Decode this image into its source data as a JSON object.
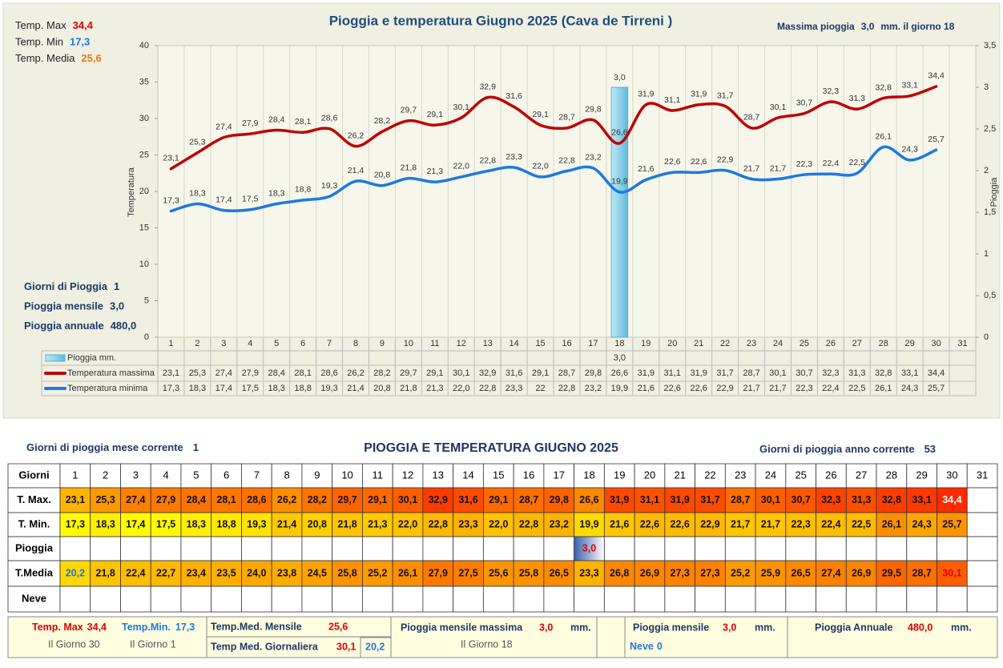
{
  "stats": [
    {
      "label": "Temp. Max",
      "value": "34,4",
      "color": "#e00000"
    },
    {
      "label": "Temp. Min",
      "value": "17,3",
      "color": "#1e78e0"
    },
    {
      "label": "Temp. Media",
      "value": "25,6",
      "color": "#e07a10"
    }
  ],
  "rain_stats": [
    {
      "label": "Giorni di Pioggia",
      "value": "1"
    },
    {
      "label": "Pioggia mensile",
      "value": "3,0"
    },
    {
      "label": "Pioggia annuale",
      "value": "480,0"
    }
  ],
  "max_rain": {
    "label": "Massima pioggia",
    "value": "3,0",
    "unit": "mm. il giorno 18"
  },
  "chart_data": {
    "type": "line",
    "title": "Pioggia e temperatura Giugno 2025 (Cava de Tirreni )",
    "y_label": "Temperatura",
    "y2_label": "Pioggia",
    "categories": [
      "1",
      "2",
      "3",
      "4",
      "5",
      "6",
      "7",
      "8",
      "9",
      "10",
      "11",
      "12",
      "13",
      "14",
      "15",
      "16",
      "17",
      "18",
      "19",
      "20",
      "21",
      "22",
      "23",
      "24",
      "25",
      "26",
      "27",
      "28",
      "29",
      "30",
      "31"
    ],
    "ylim": [
      0,
      40
    ],
    "yticks": [
      0,
      5,
      10,
      15,
      20,
      25,
      30,
      35,
      40
    ],
    "y2lim": [
      0,
      3.5
    ],
    "y2ticks": [
      0,
      {
        "value": 0.5,
        "label": "0,5"
      },
      1,
      {
        "value": 1.5,
        "label": "1,5"
      },
      2,
      {
        "value": 2.5,
        "label": "2,5"
      },
      3,
      {
        "value": 3.5,
        "label": "3,5"
      }
    ],
    "grid": "vertical",
    "series": [
      {
        "name": "Pioggia mm.",
        "type": "bar",
        "axis": "y2",
        "color": "#8fd3ea",
        "values": [
          null,
          null,
          null,
          null,
          null,
          null,
          null,
          null,
          null,
          null,
          null,
          null,
          null,
          null,
          null,
          null,
          null,
          3.0,
          null,
          null,
          null,
          null,
          null,
          null,
          null,
          null,
          null,
          null,
          null,
          null,
          null
        ],
        "value_labels": [
          null,
          null,
          null,
          null,
          null,
          null,
          null,
          null,
          null,
          null,
          null,
          null,
          null,
          null,
          null,
          null,
          null,
          "3,0",
          null,
          null,
          null,
          null,
          null,
          null,
          null,
          null,
          null,
          null,
          null,
          null,
          null
        ]
      },
      {
        "name": "Temperatura massima",
        "type": "line",
        "color": "#c00000",
        "values": [
          23.1,
          25.3,
          27.4,
          27.9,
          28.4,
          28.1,
          28.6,
          26.2,
          28.2,
          29.7,
          29.1,
          30.1,
          32.9,
          31.6,
          29.1,
          28.7,
          29.8,
          26.6,
          31.9,
          31.1,
          31.9,
          31.7,
          28.7,
          30.1,
          30.7,
          32.3,
          31.3,
          32.8,
          33.1,
          34.4,
          null
        ],
        "value_labels": [
          "23,1",
          "25,3",
          "27,4",
          "27,9",
          "28,4",
          "28,1",
          "28,6",
          "26,2",
          "28,2",
          "29,7",
          "29,1",
          "30,1",
          "32,9",
          "31,6",
          "29,1",
          "28,7",
          "29,8",
          "26,6",
          "31,9",
          "31,1",
          "31,9",
          "31,7",
          "28,7",
          "30,1",
          "30,7",
          "32,3",
          "31,3",
          "32,8",
          "33,1",
          "34,4",
          null
        ]
      },
      {
        "name": "Temperatura minima",
        "type": "line",
        "color": "#1e78e0",
        "values": [
          17.3,
          18.3,
          17.4,
          17.5,
          18.3,
          18.8,
          19.3,
          21.4,
          20.8,
          21.8,
          21.3,
          22.0,
          22.8,
          23.3,
          22.0,
          22.8,
          23.2,
          19.9,
          21.6,
          22.6,
          22.6,
          22.9,
          21.7,
          21.7,
          22.3,
          22.4,
          22.5,
          26.1,
          24.3,
          25.7,
          null
        ],
        "value_labels": [
          "17,3",
          "18,3",
          "17,4",
          "17,5",
          "18,3",
          "18,8",
          "19,3",
          "21,4",
          "20,8",
          "21,8",
          "21,3",
          "22,0",
          "22,8",
          "23,3",
          "22,0",
          "22,8",
          "23,2",
          "19,9",
          "21,6",
          "22,6",
          "22,6",
          "22,9",
          "21,7",
          "21,7",
          "22,3",
          "22,4",
          "22,5",
          "26,1",
          "24,3",
          "25,7",
          null
        ],
        "table_labels": [
          "17,3",
          "18,3",
          "17,4",
          "17,5",
          "18,3",
          "18,8",
          "19,3",
          "21,4",
          "20,8",
          "21,8",
          "21,3",
          "22,0",
          "22,8",
          "23,3",
          "22",
          "22,8",
          "23,2",
          "19,9",
          "21,6",
          "22,6",
          "22,6",
          "22,9",
          "21,7",
          "21,7",
          "22,3",
          "22,4",
          "22,5",
          "26,1",
          "24,3",
          "25,7",
          null
        ]
      }
    ]
  },
  "table": {
    "title": "PIOGGIA E TEMPERATURA GIUGNO 2025",
    "left_note": {
      "label": "Giorni di pioggia mese corrente",
      "value": "1"
    },
    "right_note": {
      "label": "Giorni di pioggia anno corrente",
      "value": "53"
    },
    "header_label": "Giorni",
    "columns": [
      "1",
      "2",
      "3",
      "4",
      "5",
      "6",
      "7",
      "8",
      "9",
      "10",
      "11",
      "12",
      "13",
      "14",
      "15",
      "16",
      "17",
      "18",
      "19",
      "20",
      "21",
      "22",
      "23",
      "24",
      "25",
      "26",
      "27",
      "28",
      "29",
      "30",
      "31"
    ],
    "rows": [
      {
        "label": "T. Max.",
        "fill": "heat",
        "extremes": "cell",
        "cells": [
          "23,1",
          "25,3",
          "27,4",
          "27,9",
          "28,4",
          "28,1",
          "28,6",
          "26,2",
          "28,2",
          "29,7",
          "29,1",
          "30,1",
          "32,9",
          "31,6",
          "29,1",
          "28,7",
          "29,8",
          "26,6",
          "31,9",
          "31,1",
          "31,9",
          "31,7",
          "28,7",
          "30,1",
          "30,7",
          "32,3",
          "31,3",
          "32,8",
          "33,1",
          "34,4",
          null
        ]
      },
      {
        "label": "T. Min.",
        "fill": "heat",
        "cells": [
          "17,3",
          "18,3",
          "17,4",
          "17,5",
          "18,3",
          "18,8",
          "19,3",
          "21,4",
          "20,8",
          "21,8",
          "21,3",
          "22,0",
          "22,8",
          "23,3",
          "22,0",
          "22,8",
          "23,2",
          "19,9",
          "21,6",
          "22,6",
          "22,6",
          "22,9",
          "21,7",
          "21,7",
          "22,3",
          "22,4",
          "22,5",
          "26,1",
          "24,3",
          "25,7",
          null
        ]
      },
      {
        "label": "Pioggia",
        "fill": "rain",
        "cells": [
          null,
          null,
          null,
          null,
          null,
          null,
          null,
          null,
          null,
          null,
          null,
          null,
          null,
          null,
          null,
          null,
          null,
          "3,0",
          null,
          null,
          null,
          null,
          null,
          null,
          null,
          null,
          null,
          null,
          null,
          null,
          null
        ]
      },
      {
        "label": "T.Media",
        "fill": "heat",
        "extremes": "text",
        "cells": [
          "20,2",
          "21,8",
          "22,4",
          "22,7",
          "23,4",
          "23,5",
          "24,0",
          "23,8",
          "24,5",
          "25,8",
          "25,2",
          "26,1",
          "27,9",
          "27,5",
          "25,6",
          "25,8",
          "26,5",
          "23,3",
          "26,8",
          "26,9",
          "27,3",
          "27,3",
          "25,2",
          "25,9",
          "26,5",
          "27,4",
          "26,9",
          "29,5",
          "28,7",
          "30,1",
          null
        ]
      },
      {
        "label": "Neve",
        "fill": "none",
        "cells": [
          null,
          null,
          null,
          null,
          null,
          null,
          null,
          null,
          null,
          null,
          null,
          null,
          null,
          null,
          null,
          null,
          null,
          null,
          null,
          null,
          null,
          null,
          null,
          null,
          null,
          null,
          null,
          null,
          null,
          null,
          null
        ]
      }
    ]
  },
  "summary": {
    "temp_max": {
      "label": "Temp. Max",
      "value": "34,4",
      "day": "Il Giorno 30"
    },
    "temp_min": {
      "label": "Temp.Min.",
      "value": "17,3",
      "day": "Il Giorno  1"
    },
    "temp_med_month": {
      "label": "Temp.Med. Mensile",
      "value": "25,6"
    },
    "temp_med_day": {
      "label": "Temp Med. Giornaliera",
      "max": "30,1",
      "min": "20,2"
    },
    "rain_max": {
      "label": "Pioggia mensile massima",
      "value": "3,0",
      "unit": "mm.",
      "day": "Il Giorno 18"
    },
    "rain_month": {
      "label": "Pioggia mensile",
      "value": "3,0",
      "unit": "mm."
    },
    "snow": {
      "label": "Neve",
      "value": "0"
    },
    "rain_year": {
      "label": "Pioggia Annuale",
      "value": "480,0",
      "unit": "mm."
    }
  }
}
